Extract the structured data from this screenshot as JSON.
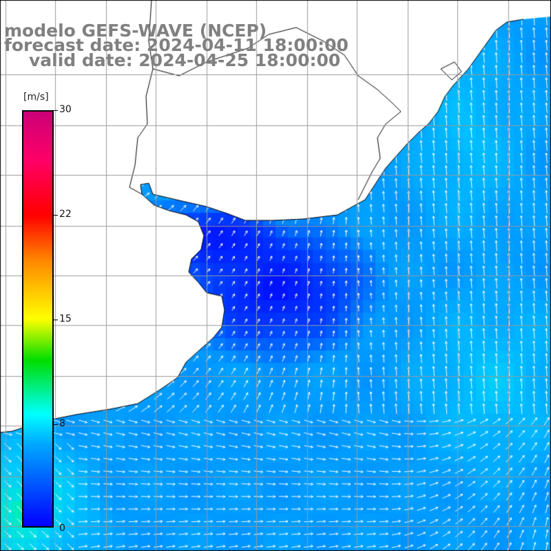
{
  "title": {
    "line1": "modelo GEFS-WAVE (NCEP)",
    "line2": "forecast date: 2024-04-11 18:00:00",
    "line3": "valid date: 2024-04-25 18:00:00"
  },
  "colorbar": {
    "units": "[m/s]",
    "ticks": [
      "30",
      "22",
      "15",
      "8",
      "0"
    ],
    "tick_values": [
      30,
      22,
      15,
      8,
      0
    ],
    "min": 0,
    "max": 30
  },
  "colors": {
    "land": "#ffffff",
    "grid": "#9a9a9a",
    "coast": "#000000",
    "arrow": "#ffffff"
  }
}
